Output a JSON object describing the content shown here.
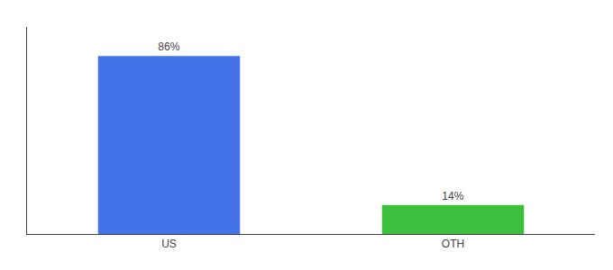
{
  "chart_data": {
    "type": "bar",
    "categories": [
      "US",
      "OTH"
    ],
    "values": [
      86,
      14
    ],
    "value_labels": [
      "86%",
      "14%"
    ],
    "colors": [
      "#4472e8",
      "#3dbf3d"
    ],
    "ylim": [
      0,
      100
    ],
    "grid": false,
    "data_labels": true,
    "tick_labels": "x"
  }
}
